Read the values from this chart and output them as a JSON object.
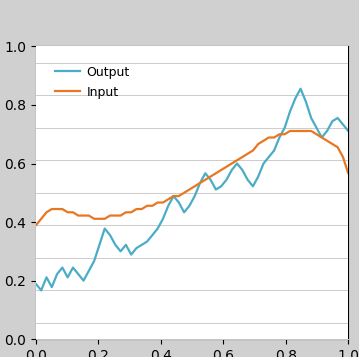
{
  "output_color": "#4BACC6",
  "input_color": "#E87722",
  "legend_labels": [
    "Output",
    "Input"
  ],
  "output_y": [
    92,
    90,
    94,
    91,
    95,
    97,
    94,
    97,
    95,
    93,
    96,
    99,
    104,
    109,
    107,
    104,
    102,
    104,
    101,
    103,
    104,
    105,
    107,
    109,
    112,
    116,
    119,
    117,
    114,
    116,
    119,
    123,
    126,
    124,
    121,
    122,
    124,
    127,
    129,
    127,
    124,
    122,
    125,
    129,
    131,
    133,
    137,
    140,
    145,
    149,
    152,
    148,
    143,
    140,
    137,
    139,
    142,
    143,
    141,
    139
  ],
  "input_y": [
    110,
    112,
    114,
    115,
    115,
    115,
    114,
    114,
    113,
    113,
    113,
    112,
    112,
    112,
    113,
    113,
    113,
    114,
    114,
    115,
    115,
    116,
    116,
    117,
    117,
    118,
    119,
    119,
    120,
    121,
    122,
    123,
    124,
    125,
    126,
    127,
    128,
    129,
    130,
    131,
    132,
    133,
    135,
    136,
    137,
    137,
    138,
    138,
    139,
    139,
    139,
    139,
    139,
    138,
    137,
    136,
    135,
    134,
    131,
    126
  ],
  "ylim": [
    75,
    165
  ],
  "grid_color": "#CCCCCC",
  "line_width": 1.6,
  "legend_fontsize": 9,
  "fig_bg": "#FFFFFF",
  "plot_bg": "#FFFFFF",
  "outer_bg": "#D0D0D0"
}
